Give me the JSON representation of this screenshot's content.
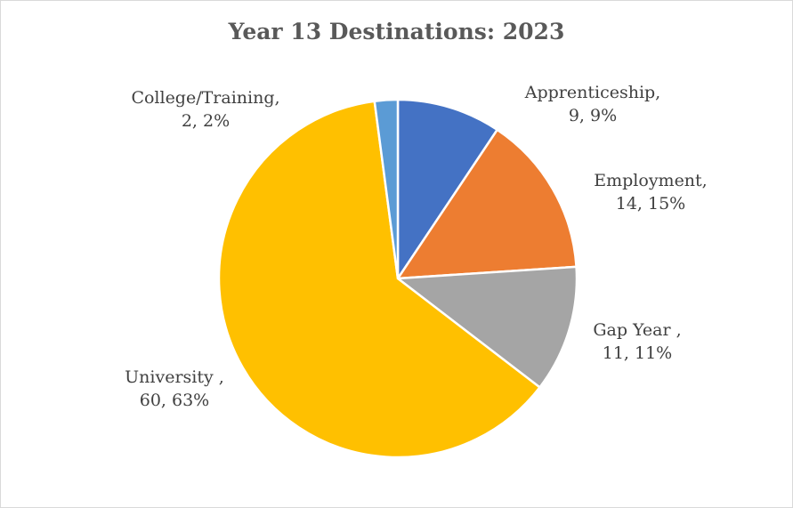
{
  "chart_data": {
    "type": "pie",
    "title": "Year 13 Destinations: 2023",
    "slices": [
      {
        "name": "Apprenticeship,",
        "value": 9,
        "percent": "9%",
        "color": "#4472c4"
      },
      {
        "name": "Employment,",
        "value": 14,
        "percent": "15%",
        "color": "#ed7d31"
      },
      {
        "name": "Gap Year ,",
        "value": 11,
        "percent": "11%",
        "color": "#a5a5a5"
      },
      {
        "name": "University ,",
        "value": 60,
        "percent": "63%",
        "color": "#ffc000"
      },
      {
        "name": "College/Training,",
        "value": 2,
        "percent": "2%",
        "color": "#5b9bd5"
      }
    ],
    "labels": [
      {
        "line1": "Apprenticeship,",
        "line2": "9, 9%"
      },
      {
        "line1": "Employment,",
        "line2": "14, 15%"
      },
      {
        "line1": "Gap Year ,",
        "line2": "11, 11%"
      },
      {
        "line1": "University ,",
        "line2": "60, 63%"
      },
      {
        "line1": "College/Training,",
        "line2": "2, 2%"
      }
    ]
  }
}
